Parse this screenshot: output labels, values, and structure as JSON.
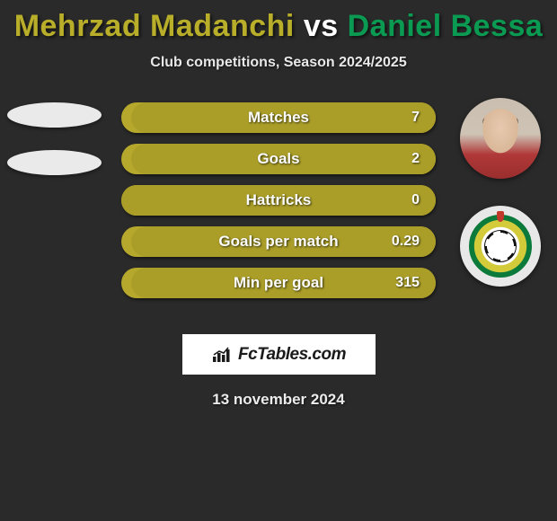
{
  "title": {
    "player1": "Mehrzad Madanchi",
    "vs": "vs",
    "player2": "Daniel Bessa",
    "color_player1": "#b8ae2a",
    "color_vs": "#ffffff",
    "color_player2": "#0b9a52"
  },
  "subtitle": "Club competitions, Season 2024/2025",
  "stats": [
    {
      "label": "Matches",
      "value": "7",
      "left_pct": 3,
      "bg": "#b5a82c",
      "fill": "#aa9e29"
    },
    {
      "label": "Goals",
      "value": "2",
      "left_pct": 3,
      "bg": "#b5a82c",
      "fill": "#aa9e29"
    },
    {
      "label": "Hattricks",
      "value": "0",
      "left_pct": 0,
      "bg": "#b5a82c",
      "fill": "#aa9e29"
    },
    {
      "label": "Goals per match",
      "value": "0.29",
      "left_pct": 3,
      "bg": "#b5a82c",
      "fill": "#aa9e29"
    },
    {
      "label": "Min per goal",
      "value": "315",
      "left_pct": 3,
      "bg": "#b5a82c",
      "fill": "#aa9e29"
    }
  ],
  "brand": "FcTables.com",
  "date": "13 november 2024",
  "colors": {
    "background": "#2a2a2a",
    "bar_base": "#b5a82c",
    "bar_fill": "#aa9e29",
    "text": "#ffffff"
  }
}
